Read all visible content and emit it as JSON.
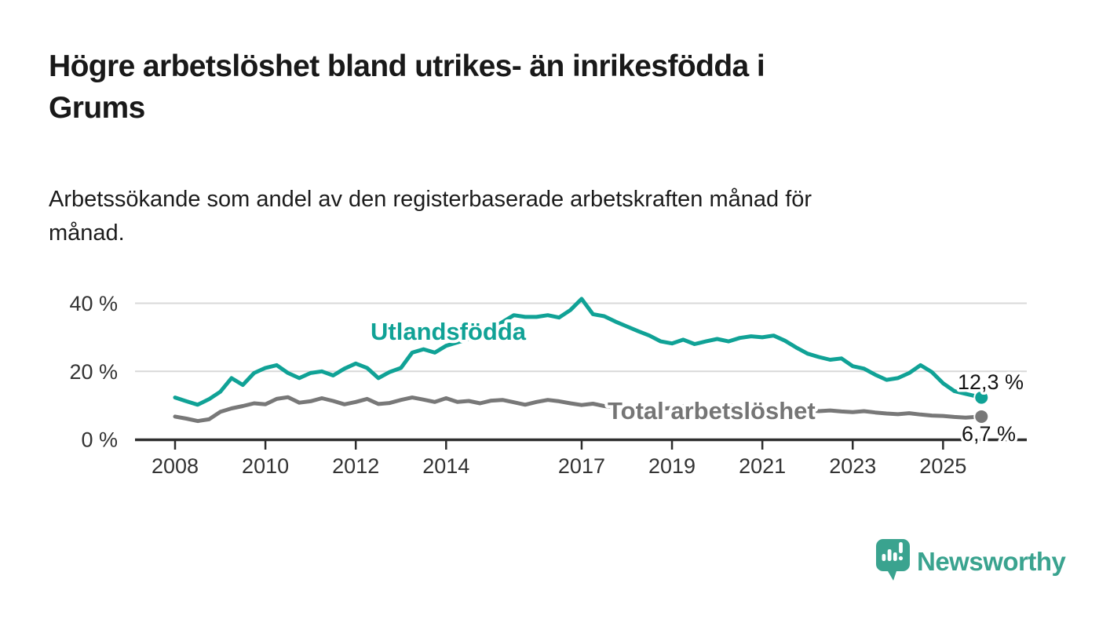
{
  "title_lines": [
    "Högre arbetslöshet bland utrikes- än inrikesfödda i",
    "Grums"
  ],
  "subtitle_lines": [
    "Arbetssökande som andel av den registerbaserade arbetskraften månad för",
    "månad."
  ],
  "logo": {
    "brand": "Newsworthy",
    "color": "#3aa38f"
  },
  "colors": {
    "foreign_line": "#10a296",
    "total_line": "#787878",
    "total_label": "#757575",
    "grid": "#d9d9d9",
    "axis": "#2e2e2e",
    "tick_text": "#333333",
    "value_text": "#141414"
  },
  "chart_data": {
    "type": "line",
    "x_unit": "year (monthly series shown, approximated quarterly)",
    "ylabel": "",
    "xlabel": "",
    "ylim": [
      0,
      43
    ],
    "xlim": [
      2007.1,
      2026.85
    ],
    "grid": "horizontal",
    "x_ticks": [
      2008,
      2010,
      2012,
      2014,
      2017,
      2019,
      2021,
      2023,
      2025
    ],
    "y_ticks": [
      {
        "value": 0,
        "label": "0 %"
      },
      {
        "value": 20,
        "label": "20 %"
      },
      {
        "value": 40,
        "label": "40 %"
      }
    ],
    "series": [
      {
        "name": "Utlandsfödda",
        "color": "#10a296",
        "end_label": "12,3 %",
        "end_value": 12.3,
        "points": [
          [
            2008.0,
            12.3
          ],
          [
            2008.25,
            11.2
          ],
          [
            2008.5,
            10.2
          ],
          [
            2008.75,
            11.8
          ],
          [
            2009.0,
            14.0
          ],
          [
            2009.25,
            18.0
          ],
          [
            2009.5,
            16.0
          ],
          [
            2009.75,
            19.5
          ],
          [
            2010.0,
            21.0
          ],
          [
            2010.25,
            21.8
          ],
          [
            2010.5,
            19.5
          ],
          [
            2010.75,
            18.0
          ],
          [
            2011.0,
            19.5
          ],
          [
            2011.25,
            20.0
          ],
          [
            2011.5,
            18.8
          ],
          [
            2011.75,
            20.8
          ],
          [
            2012.0,
            22.3
          ],
          [
            2012.25,
            21.0
          ],
          [
            2012.5,
            18.0
          ],
          [
            2012.75,
            19.8
          ],
          [
            2013.0,
            21.0
          ],
          [
            2013.25,
            25.5
          ],
          [
            2013.5,
            26.5
          ],
          [
            2013.75,
            25.5
          ],
          [
            2014.0,
            27.5
          ],
          [
            2014.25,
            28.5
          ],
          [
            2014.5,
            29.5
          ],
          [
            2014.75,
            31.0
          ],
          [
            2015.0,
            32.5
          ],
          [
            2015.25,
            34.5
          ],
          [
            2015.5,
            36.5
          ],
          [
            2015.75,
            36.0
          ],
          [
            2016.0,
            36.0
          ],
          [
            2016.25,
            36.5
          ],
          [
            2016.5,
            35.8
          ],
          [
            2016.75,
            38.0
          ],
          [
            2017.0,
            41.3
          ],
          [
            2017.25,
            36.8
          ],
          [
            2017.5,
            36.2
          ],
          [
            2017.75,
            34.6
          ],
          [
            2018.0,
            33.2
          ],
          [
            2018.25,
            31.8
          ],
          [
            2018.5,
            30.5
          ],
          [
            2018.75,
            28.8
          ],
          [
            2019.0,
            28.2
          ],
          [
            2019.25,
            29.3
          ],
          [
            2019.5,
            28.0
          ],
          [
            2019.75,
            28.8
          ],
          [
            2020.0,
            29.5
          ],
          [
            2020.25,
            28.8
          ],
          [
            2020.5,
            29.8
          ],
          [
            2020.75,
            30.3
          ],
          [
            2021.0,
            30.0
          ],
          [
            2021.25,
            30.5
          ],
          [
            2021.5,
            29.0
          ],
          [
            2021.75,
            27.0
          ],
          [
            2022.0,
            25.2
          ],
          [
            2022.25,
            24.2
          ],
          [
            2022.5,
            23.4
          ],
          [
            2022.75,
            23.8
          ],
          [
            2023.0,
            21.5
          ],
          [
            2023.25,
            20.8
          ],
          [
            2023.5,
            19.0
          ],
          [
            2023.75,
            17.5
          ],
          [
            2024.0,
            18.0
          ],
          [
            2024.25,
            19.5
          ],
          [
            2024.5,
            21.8
          ],
          [
            2024.75,
            19.8
          ],
          [
            2025.0,
            16.5
          ],
          [
            2025.25,
            14.2
          ],
          [
            2025.5,
            13.4
          ],
          [
            2025.85,
            12.3
          ]
        ]
      },
      {
        "name": "Total arbetslöshet",
        "color": "#787878",
        "end_label": "6,7 %",
        "end_value": 6.7,
        "points": [
          [
            2008.0,
            6.7
          ],
          [
            2008.25,
            6.1
          ],
          [
            2008.5,
            5.4
          ],
          [
            2008.75,
            5.9
          ],
          [
            2009.0,
            8.1
          ],
          [
            2009.25,
            9.1
          ],
          [
            2009.5,
            9.8
          ],
          [
            2009.75,
            10.6
          ],
          [
            2010.0,
            10.3
          ],
          [
            2010.25,
            11.9
          ],
          [
            2010.5,
            12.4
          ],
          [
            2010.75,
            10.8
          ],
          [
            2011.0,
            11.2
          ],
          [
            2011.25,
            12.1
          ],
          [
            2011.5,
            11.3
          ],
          [
            2011.75,
            10.3
          ],
          [
            2012.0,
            11.0
          ],
          [
            2012.25,
            11.9
          ],
          [
            2012.5,
            10.4
          ],
          [
            2012.75,
            10.7
          ],
          [
            2013.0,
            11.6
          ],
          [
            2013.25,
            12.3
          ],
          [
            2013.5,
            11.7
          ],
          [
            2013.75,
            11.0
          ],
          [
            2014.0,
            12.1
          ],
          [
            2014.25,
            11.0
          ],
          [
            2014.5,
            11.3
          ],
          [
            2014.75,
            10.6
          ],
          [
            2015.0,
            11.4
          ],
          [
            2015.25,
            11.6
          ],
          [
            2015.5,
            10.9
          ],
          [
            2015.75,
            10.2
          ],
          [
            2016.0,
            11.0
          ],
          [
            2016.25,
            11.6
          ],
          [
            2016.5,
            11.2
          ],
          [
            2016.75,
            10.6
          ],
          [
            2017.0,
            10.1
          ],
          [
            2017.25,
            10.5
          ],
          [
            2017.5,
            9.8
          ],
          [
            2017.75,
            9.4
          ],
          [
            2018.0,
            9.0
          ],
          [
            2018.25,
            9.6
          ],
          [
            2018.5,
            9.2
          ],
          [
            2018.75,
            8.9
          ],
          [
            2019.0,
            9.3
          ],
          [
            2019.25,
            9.7
          ],
          [
            2019.5,
            9.2
          ],
          [
            2019.75,
            8.8
          ],
          [
            2020.0,
            9.4
          ],
          [
            2020.25,
            10.0
          ],
          [
            2020.5,
            9.6
          ],
          [
            2020.75,
            9.2
          ],
          [
            2021.0,
            9.4
          ],
          [
            2021.25,
            9.0
          ],
          [
            2021.5,
            8.7
          ],
          [
            2021.75,
            8.9
          ],
          [
            2022.0,
            8.6
          ],
          [
            2022.25,
            8.3
          ],
          [
            2022.5,
            8.5
          ],
          [
            2022.75,
            8.2
          ],
          [
            2023.0,
            8.0
          ],
          [
            2023.25,
            8.3
          ],
          [
            2023.5,
            7.9
          ],
          [
            2023.75,
            7.6
          ],
          [
            2024.0,
            7.4
          ],
          [
            2024.25,
            7.7
          ],
          [
            2024.5,
            7.3
          ],
          [
            2024.75,
            7.0
          ],
          [
            2025.0,
            6.9
          ],
          [
            2025.25,
            6.6
          ],
          [
            2025.5,
            6.4
          ],
          [
            2025.85,
            6.7
          ]
        ]
      }
    ]
  }
}
